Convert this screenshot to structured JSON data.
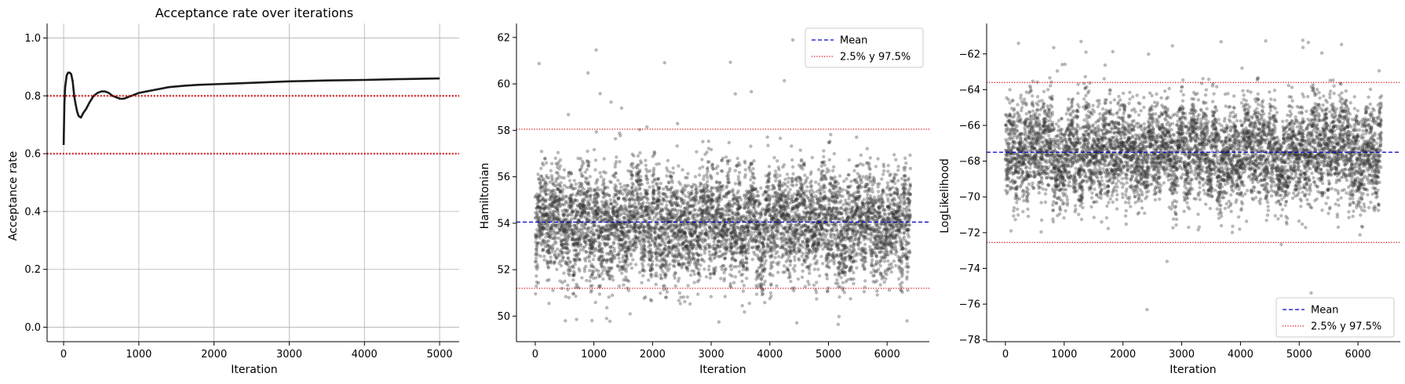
{
  "chart_data": [
    {
      "type": "line",
      "title": "Acceptance rate over iterations",
      "xlabel": "Iteration",
      "ylabel": "Acceptance rate",
      "xlim": [
        -220,
        5260
      ],
      "ylim": [
        -0.05,
        1.05
      ],
      "xticks": [
        0,
        1000,
        2000,
        3000,
        4000,
        5000
      ],
      "yticks": [
        0.0,
        0.2,
        0.4,
        0.6,
        0.8,
        1.0
      ],
      "ytick_labels": [
        "0.0",
        "0.2",
        "0.4",
        "0.6",
        "0.8",
        "1.0"
      ],
      "grid": true,
      "series": [
        {
          "color": "#1a1a1a",
          "x": [
            0,
            10,
            20,
            40,
            60,
            80,
            100,
            120,
            140,
            160,
            180,
            200,
            230,
            260,
            300,
            350,
            400,
            450,
            500,
            550,
            600,
            650,
            700,
            750,
            800,
            900,
            1000,
            1100,
            1200,
            1400,
            1600,
            1800,
            2000,
            2300,
            2600,
            3000,
            3500,
            4000,
            4500,
            5000
          ],
          "y": [
            0.63,
            0.77,
            0.83,
            0.87,
            0.88,
            0.88,
            0.875,
            0.85,
            0.8,
            0.77,
            0.745,
            0.73,
            0.725,
            0.74,
            0.755,
            0.78,
            0.8,
            0.81,
            0.815,
            0.815,
            0.81,
            0.8,
            0.795,
            0.79,
            0.79,
            0.8,
            0.81,
            0.815,
            0.82,
            0.83,
            0.835,
            0.838,
            0.84,
            0.843,
            0.846,
            0.85,
            0.853,
            0.855,
            0.858,
            0.86
          ]
        }
      ],
      "hlines": [
        {
          "y": 0.8,
          "color": "#e00000",
          "style": "dotted"
        },
        {
          "y": 0.6,
          "color": "#e00000",
          "style": "dotted"
        }
      ]
    },
    {
      "type": "scatter",
      "xlabel": "Iteration",
      "ylabel": "Hamiltonian",
      "xlim": [
        -320,
        6720
      ],
      "ylim": [
        48.9,
        62.6
      ],
      "xticks": [
        0,
        1000,
        2000,
        3000,
        4000,
        5000,
        6000
      ],
      "yticks": [
        50,
        52,
        54,
        56,
        58,
        60,
        62
      ],
      "grid": false,
      "n_points": 6400,
      "center": 54.05,
      "spread_low": 50.3,
      "spread_high": 57.8,
      "outlier_max": 62.0,
      "outlier_min": 49.6,
      "point_color": "#333333",
      "hlines": [
        {
          "name": "Mean",
          "y": 54.05,
          "color": "#0000cc",
          "style": "dashed"
        },
        {
          "name": "2.5% y 97.5%",
          "y": 58.05,
          "color": "#e00000",
          "style": "dotted"
        },
        {
          "name": "2.5% y 97.5%",
          "y": 51.2,
          "color": "#e00000",
          "style": "dotted"
        }
      ],
      "legend": {
        "position": "top-right",
        "entries": [
          {
            "label": "Mean",
            "color": "#0000cc",
            "style": "dashed"
          },
          {
            "label": "2.5% y 97.5%",
            "color": "#e00000",
            "style": "dotted"
          }
        ]
      }
    },
    {
      "type": "scatter",
      "xlabel": "Iteration",
      "ylabel": "LogLikelihood",
      "xlim": [
        -320,
        6720
      ],
      "ylim": [
        -78.1,
        -60.3
      ],
      "xticks": [
        0,
        1000,
        2000,
        3000,
        4000,
        5000,
        6000
      ],
      "yticks": [
        -78,
        -76,
        -74,
        -72,
        -70,
        -68,
        -66,
        -64,
        -62
      ],
      "ytick_labels": [
        "−78",
        "−76",
        "−74",
        "−72",
        "−70",
        "−68",
        "−66",
        "−64",
        "−62"
      ],
      "grid": false,
      "n_points": 6400,
      "center": -67.5,
      "spread_low": -72.0,
      "spread_high": -63.0,
      "outlier_max": -61.2,
      "outlier_min": -76.5,
      "point_color": "#333333",
      "hlines": [
        {
          "name": "Mean",
          "y": -67.5,
          "color": "#0000cc",
          "style": "dashed"
        },
        {
          "name": "2.5% y 97.5%",
          "y": -63.6,
          "color": "#e00000",
          "style": "dotted"
        },
        {
          "name": "2.5% y 97.5%",
          "y": -72.55,
          "color": "#e00000",
          "style": "dotted"
        }
      ],
      "legend": {
        "position": "bottom-right",
        "entries": [
          {
            "label": "Mean",
            "color": "#0000cc",
            "style": "dashed"
          },
          {
            "label": "2.5% y 97.5%",
            "color": "#e00000",
            "style": "dotted"
          }
        ]
      }
    }
  ]
}
